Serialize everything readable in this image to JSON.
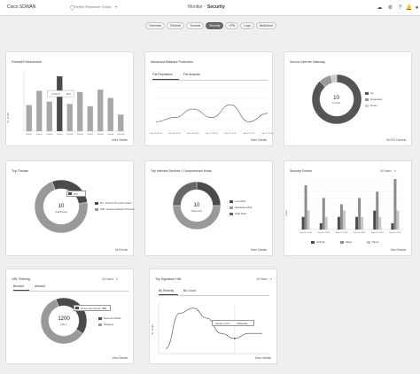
{
  "header": {
    "brand": "Cisco SDWAN",
    "resource_group": "Select Resource Group",
    "page_title_prefix": "Monitor · ",
    "page_title": "Security",
    "icons": [
      "cloud-icon",
      "gear-icon",
      "help-icon",
      "bell-icon",
      "user-icon"
    ]
  },
  "tabs": [
    "Overview",
    "Devices",
    "Tunnels",
    "Security",
    "VPN",
    "Logs",
    "Multicloud"
  ],
  "active_tab": "Security",
  "colors": {
    "dark": "#4a4a4a",
    "mid": "#8c8c8c",
    "light": "#c6c6c6",
    "accent": "#666666"
  },
  "firewall": {
    "title": "Firewall Enforcement",
    "link": "More Details",
    "tooltip_label": "Policy4",
    "tooltip_value": "462",
    "ylabel": "No. of Hits"
  },
  "malware": {
    "title": "Advanced Malware Protection",
    "tabs": [
      "File Reputation",
      "File Analysis"
    ],
    "link": "More Details"
  },
  "gateway": {
    "title": "Secure Internet Gateway",
    "center_value": "10",
    "center_label": "Tunnels",
    "legend": [
      "Up",
      "Degraded",
      "Down"
    ],
    "link": "All SIG Tunnels"
  },
  "threats": {
    "title": "Top Threats",
    "center_value": "10",
    "center_label": "Total Threats",
    "legend": [
      "IPS - Intrusion Prevention System",
      "AMP - Advanced Malware Protection"
    ],
    "tooltip": "IPS",
    "link": "All Events"
  },
  "infected": {
    "title": "Top Infected Devices / Compromised Hosts",
    "center_value": "10",
    "center_label": "Reference",
    "legend": [
      "Low Risk",
      "Moderate Risk",
      "High Risk"
    ],
    "link": "More Details"
  },
  "events": {
    "title": "Security Events",
    "range": "24 Hours",
    "legend": [
      "Critical",
      "Major",
      "Minor"
    ],
    "ylabel": "Count",
    "link": "View Details"
  },
  "url": {
    "title": "URL Filtering",
    "range": "24 Hours",
    "tabs": [
      "Blocked",
      "Allowed"
    ],
    "center_value": "1200",
    "center_label": "URL's",
    "tooltip_label": "News and Media",
    "tooltip_value": "500",
    "legend": [
      "News and Media",
      "Shopping"
    ],
    "link": "View Details"
  },
  "signature": {
    "title": "Top Signature Hits",
    "range": "24 Hours",
    "tabs": [
      "By Severity",
      "By Count"
    ],
    "tooltip_label": "Medium IPS",
    "tooltip_value": "4 Events",
    "ylabel": "No. of Hits",
    "link": "More Details"
  },
  "chart_data": [
    {
      "type": "bar",
      "title": "Firewall Enforcement",
      "ylabel": "No. of Hits",
      "categories": [
        "Policy1",
        "Policy2",
        "Policy3",
        "Policy4",
        "Policy5",
        "Policy6",
        "Policy7",
        "Policy8",
        "Policy9",
        "Policy10"
      ],
      "values": [
        220,
        340,
        250,
        462,
        230,
        330,
        210,
        350,
        280,
        140
      ],
      "highlight_index": 3,
      "ylim": [
        0,
        500
      ]
    },
    {
      "type": "line",
      "title": "Advanced Malware Protection",
      "x": [
        "Mar 26 16:00",
        "Mar 26 19:00",
        "Mar 26 22:00",
        "Mar 27 01:00",
        "Mar 27 04:00",
        "Mar 27 07:00",
        "Mar 27 10:00"
      ],
      "y": [
        2,
        3,
        5,
        3,
        6,
        2,
        4
      ],
      "ylim": [
        0,
        10
      ]
    },
    {
      "type": "pie",
      "title": "Secure Internet Gateway",
      "categories": [
        "Up",
        "Degraded",
        "Down"
      ],
      "values": [
        88,
        8,
        4
      ]
    },
    {
      "type": "pie",
      "title": "Top Threats",
      "categories": [
        "IPS - Intrusion Prevention System",
        "AMP - Advanced Malware Protection"
      ],
      "values": [
        28,
        72
      ]
    },
    {
      "type": "pie",
      "title": "Top Infected Devices / Compromised Hosts",
      "categories": [
        "Low Risk",
        "Moderate Risk",
        "High Risk"
      ],
      "values": [
        25,
        50,
        25
      ]
    },
    {
      "type": "bar",
      "title": "Security Events",
      "ylabel": "Count",
      "categories": [
        "Sep 20, 15:30",
        "Sep 20, 16:30",
        "Sep 20, 17:30",
        "Sep 20, 18:30",
        "Sep 20, 19:30",
        "Sep 20, 20:30"
      ],
      "series": [
        {
          "name": "Critical",
          "values": [
            2,
            1,
            2,
            2,
            3,
            1
          ]
        },
        {
          "name": "Major",
          "values": [
            7,
            5,
            4,
            5,
            6,
            8
          ]
        },
        {
          "name": "Minor",
          "values": [
            3,
            2,
            3,
            2,
            2,
            3
          ]
        }
      ],
      "ylim": [
        0,
        8
      ]
    },
    {
      "type": "pie",
      "title": "URL Filtering",
      "categories": [
        "News and Media",
        "Shopping"
      ],
      "values": [
        40,
        60
      ]
    },
    {
      "type": "line",
      "title": "Top Signature Hits",
      "ylabel": "No. of Hits",
      "y": [
        1,
        8,
        9,
        7,
        4,
        3,
        4,
        4
      ],
      "ylim": [
        0,
        10
      ]
    }
  ]
}
